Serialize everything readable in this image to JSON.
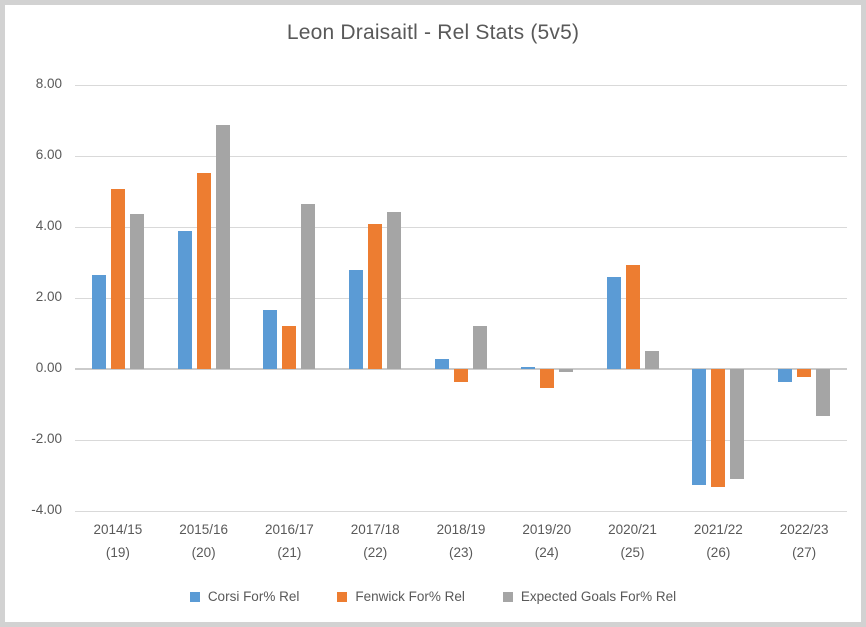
{
  "chart_data": {
    "type": "bar",
    "title": "Leon Draisaitl - Rel Stats (5v5)",
    "categories": [
      [
        "2014/15",
        "(19)"
      ],
      [
        "2015/16",
        "(20)"
      ],
      [
        "2016/17",
        "(21)"
      ],
      [
        "2017/18",
        "(22)"
      ],
      [
        "2018/19",
        "(23)"
      ],
      [
        "2019/20",
        "(24)"
      ],
      [
        "2020/21",
        "(25)"
      ],
      [
        "2021/22",
        "(26)"
      ],
      [
        "2022/23",
        "(27)"
      ]
    ],
    "series": [
      {
        "name": "Corsi For% Rel",
        "color": "#5B9BD5",
        "values": [
          2.66,
          3.88,
          1.65,
          2.8,
          0.28,
          0.07,
          2.59,
          -3.27,
          -0.36
        ]
      },
      {
        "name": "Fenwick For% Rel",
        "color": "#ED7D31",
        "values": [
          5.08,
          5.52,
          1.2,
          4.09,
          -0.36,
          -0.54,
          2.92,
          -3.33,
          -0.23
        ]
      },
      {
        "name": "Expected Goals For% Rel",
        "color": "#A5A5A5",
        "values": [
          4.37,
          6.87,
          4.66,
          4.41,
          1.2,
          -0.08,
          0.51,
          -3.1,
          -1.32
        ]
      }
    ],
    "xlabel": "",
    "ylabel": "",
    "ylim": [
      -4,
      8
    ],
    "yticks": [
      {
        "value": 8,
        "label": "8.00"
      },
      {
        "value": 6,
        "label": "6.00"
      },
      {
        "value": 4,
        "label": "4.00"
      },
      {
        "value": 2,
        "label": "2.00"
      },
      {
        "value": 0,
        "label": "0.00"
      },
      {
        "value": -2,
        "label": "-2.00"
      },
      {
        "value": -4,
        "label": "-4.00"
      }
    ],
    "grid": true,
    "legend_position": "bottom"
  },
  "colors": {
    "text": "#595959",
    "gridline": "#d9d9d9",
    "axis_line": "#cbcbcb",
    "frame_border": "#d2d2d2",
    "background": "#ffffff"
  }
}
